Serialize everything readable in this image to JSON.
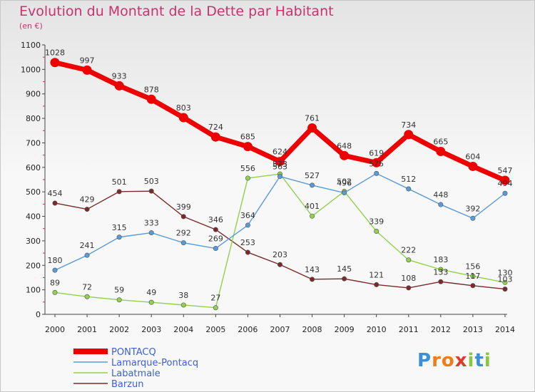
{
  "chart_data": {
    "type": "line",
    "title": "Evolution du Montant de la Dette par Habitant",
    "subtitle": "(en €)",
    "categories": [
      "2000",
      "2001",
      "2002",
      "2003",
      "2004",
      "2005",
      "2006",
      "2007",
      "2008",
      "2009",
      "2010",
      "2011",
      "2012",
      "2013",
      "2014"
    ],
    "ylim": [
      0,
      1100
    ],
    "yticks": [
      0,
      100,
      200,
      300,
      400,
      500,
      600,
      700,
      800,
      900,
      1000,
      1100
    ],
    "grid": false,
    "legend_position": "bottom-left",
    "series": [
      {
        "name": "PONTACQ",
        "color": "#ee0000",
        "values": [
          1028,
          997,
          933,
          878,
          803,
          724,
          685,
          624,
          761,
          648,
          619,
          734,
          665,
          604,
          547
        ]
      },
      {
        "name": "Lamarque-Pontacq",
        "color": "#5b9bd5",
        "values": [
          180,
          241,
          315,
          333,
          292,
          269,
          364,
          563,
          527,
          496,
          575,
          512,
          448,
          392,
          494
        ]
      },
      {
        "name": "Labatmale",
        "color": "#92d050",
        "values": [
          89,
          72,
          59,
          49,
          38,
          27,
          556,
          573,
          401,
          502,
          339,
          222,
          183,
          156,
          130
        ]
      },
      {
        "name": "Barzun",
        "color": "#7a2a2a",
        "values": [
          454,
          429,
          501,
          503,
          399,
          346,
          253,
          203,
          143,
          145,
          121,
          108,
          133,
          117,
          103
        ]
      }
    ],
    "data_labels": {
      "PONTACQ": [
        "1028",
        "997",
        "933",
        "878",
        "803",
        "724",
        "685",
        "624",
        "761",
        "648",
        "619",
        "734",
        "665",
        "604",
        "547"
      ],
      "Lamarque-Pontacq": [
        "180",
        "241",
        "315",
        "333",
        "292",
        "269",
        "364",
        "563",
        "527",
        "496",
        "575",
        "512",
        "448",
        "392",
        "494"
      ],
      "Labatmale": [
        "89",
        "72",
        "59",
        "49",
        "38",
        "27",
        "556",
        "573",
        "401",
        "502",
        "339",
        "222",
        "183",
        "156",
        "130"
      ],
      "Barzun": [
        "454",
        "429",
        "501",
        "503",
        "399",
        "346",
        "253",
        "203",
        "143",
        "145",
        "121",
        "108",
        "133",
        "117",
        "103"
      ]
    }
  },
  "branding": {
    "logo_text": "Proxiti",
    "logo_letters": [
      {
        "ch": "P",
        "color": "#3b8fd6"
      },
      {
        "ch": "r",
        "color": "#f07d1a"
      },
      {
        "ch": "o",
        "color": "#f07d1a"
      },
      {
        "ch": "x",
        "color": "#e03a2a"
      },
      {
        "ch": "i",
        "color": "#8cc63f"
      },
      {
        "ch": "t",
        "color": "#3b8fd6"
      },
      {
        "ch": "i",
        "color": "#8cc63f"
      }
    ]
  }
}
